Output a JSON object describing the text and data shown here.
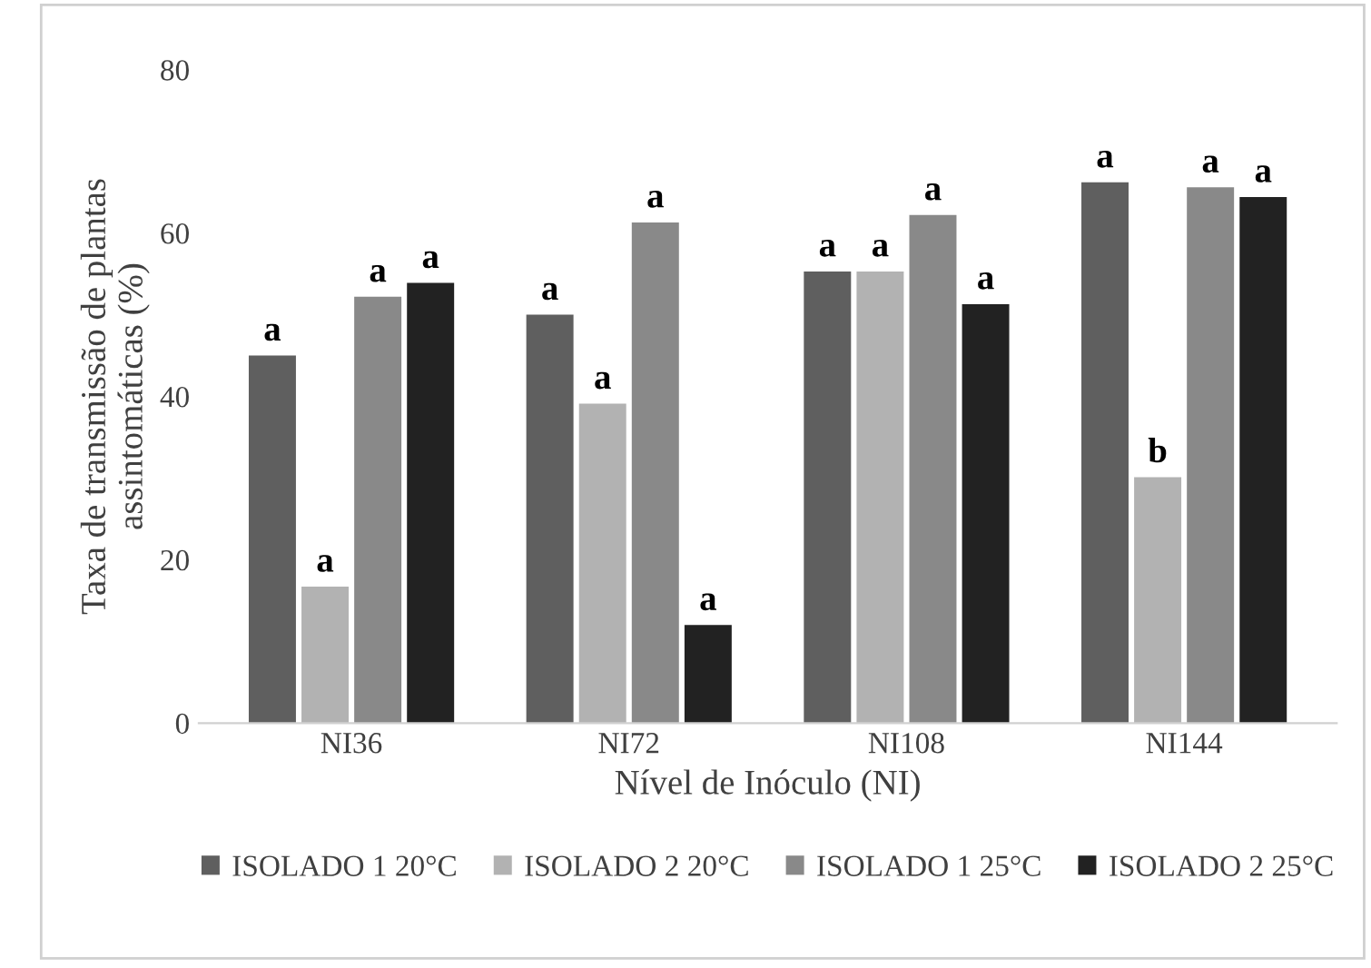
{
  "chart_data": {
    "type": "bar",
    "xlabel": "Nível de Inóculo (NI)",
    "ylabel": "Taxa de transmissão de plantas\nassintomáticas (%)",
    "categories": [
      "NI36",
      "NI72",
      "NI108",
      "NI144"
    ],
    "series": [
      {
        "name": "ISOLADO 1 20°C",
        "color": "#5f5f5f",
        "values": [
          45,
          50,
          55.3,
          66.2
        ],
        "value_labels": [
          "a",
          "a",
          "a",
          "a"
        ]
      },
      {
        "name": "ISOLADO 2 20°C",
        "color": "#b2b2b2",
        "values": [
          16.7,
          39.1,
          55.3,
          30.1
        ],
        "value_labels": [
          "a",
          "a",
          "a",
          "b"
        ]
      },
      {
        "name": "ISOLADO 1 25°C",
        "color": "#898989",
        "values": [
          52.2,
          61.3,
          62.2,
          65.6
        ],
        "value_labels": [
          "a",
          "a",
          "a",
          "a"
        ]
      },
      {
        "name": "ISOLADO 2 25°C",
        "color": "#222222",
        "values": [
          53.9,
          12.0,
          51.3,
          64.4
        ],
        "value_labels": [
          "a",
          "a",
          "a",
          "a"
        ]
      }
    ],
    "ylim": [
      0,
      80
    ],
    "yticks": [
      0,
      20,
      40,
      60,
      80
    ],
    "grid": false,
    "legend": "bottom"
  }
}
